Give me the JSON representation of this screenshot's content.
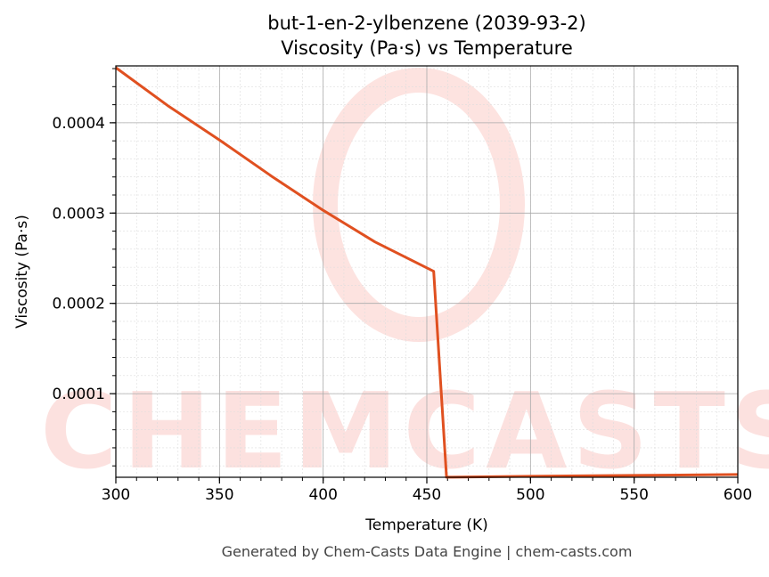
{
  "chart_data": {
    "type": "line",
    "title": "but-1-en-2-ylbenzene (2039-93-2)",
    "subtitle": "Viscosity (Pa·s) vs Temperature",
    "xlabel": "Temperature (K)",
    "ylabel": "Viscosity (Pa·s)",
    "xlim": [
      300,
      600
    ],
    "ylim": [
      7.4e-06,
      0.000463
    ],
    "xticks": [
      300,
      350,
      400,
      450,
      500,
      550,
      600
    ],
    "yticks": [
      0.0001,
      0.0002,
      0.0003,
      0.0004
    ],
    "ytick_labels": [
      "0.0001",
      "0.0002",
      "0.0003",
      "0.0004"
    ],
    "grid": true,
    "line_color": "#e05020",
    "series": [
      {
        "x": [
          300,
          325,
          350,
          375,
          400,
          425,
          453.3,
          459.5,
          500,
          550,
          600
        ],
        "values": [
          0.000461,
          0.000419,
          0.000381,
          0.000341,
          0.000303,
          0.000268,
          0.0002355,
          7.5e-06,
          8.5e-06,
          9.5e-06,
          1.05e-05
        ]
      }
    ]
  },
  "watermark": "CHEMCASTS",
  "footer": "Generated by Chem-Casts Data Engine | chem-casts.com"
}
